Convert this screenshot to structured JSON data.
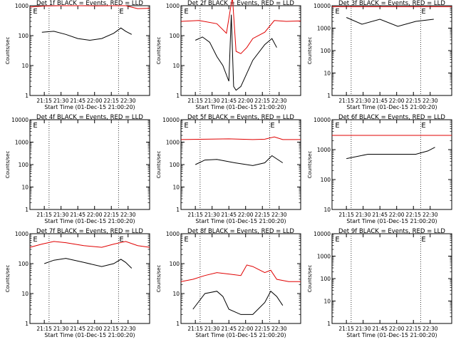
{
  "chart_data": [
    {
      "title": "Det 1f BLACK = Events, RED = LLD",
      "type": "line",
      "log": true,
      "yticks": [
        1,
        10,
        100,
        1000
      ],
      "xlabel": "Start Time (01-Dec-15 21:00:20)",
      "ylabel": "Counts/sec",
      "xticks": [
        "21:15",
        "21:30",
        "21:45",
        "22:00",
        "22:15",
        "22:30"
      ],
      "markers": [
        "E",
        "E"
      ],
      "series": [
        {
          "name": "RED",
          "color": "#e00000",
          "x": [
            0,
            0.12,
            0.25,
            0.4,
            0.55,
            0.7,
            0.8,
            0.9,
            1
          ],
          "y": [
            900,
            980,
            1000,
            1000,
            990,
            1000,
            1000,
            800,
            820
          ]
        },
        {
          "name": "BLACK",
          "color": "#000000",
          "x": [
            0.1,
            0.2,
            0.3,
            0.4,
            0.5,
            0.6,
            0.7,
            0.76,
            0.8,
            0.85
          ],
          "y": [
            130,
            140,
            110,
            80,
            70,
            80,
            120,
            180,
            140,
            110
          ]
        }
      ]
    },
    {
      "title": "Det 2f BLACK = Events, RED = LLD",
      "type": "line",
      "log": true,
      "yticks": [
        1,
        10,
        100,
        1000
      ],
      "xlabel": "Start Time (01-Dec-15 21:00:20)",
      "ylabel": "Counts/sec",
      "xticks": [
        "21:15",
        "21:30",
        "21:45",
        "22:00",
        "22:15",
        "22:30"
      ],
      "markers": [
        "E"
      ],
      "series": [
        {
          "name": "RED",
          "color": "#e00000",
          "x": [
            0,
            0.15,
            0.3,
            0.38,
            0.43,
            0.46,
            0.5,
            0.55,
            0.6,
            0.7,
            0.78,
            0.88,
            1
          ],
          "y": [
            300,
            320,
            250,
            120,
            2000,
            30,
            25,
            40,
            80,
            130,
            320,
            300,
            310
          ]
        },
        {
          "name": "BLACK",
          "color": "#000000",
          "x": [
            0.12,
            0.18,
            0.24,
            0.3,
            0.35,
            0.4,
            0.42,
            0.44,
            0.46,
            0.5,
            0.6,
            0.7,
            0.76,
            0.8
          ],
          "y": [
            70,
            90,
            60,
            20,
            10,
            3,
            500,
            2,
            1.5,
            2,
            15,
            50,
            80,
            40
          ]
        }
      ]
    },
    {
      "title": "Det 3f BLACK = Events, RED = LLD",
      "type": "line",
      "log": true,
      "yticks": [
        1,
        10,
        100,
        1000,
        10000
      ],
      "xlabel": "Start Time (01-Dec-15 21:00:20)",
      "ylabel": "Counts/sec",
      "xticks": [
        "21:15",
        "21:30",
        "21:45",
        "22:00",
        "22:15",
        "22:30"
      ],
      "markers": [
        "E",
        "E"
      ],
      "series": [
        {
          "name": "RED",
          "color": "#e00000",
          "x": [
            0,
            0.5,
            1
          ],
          "y": [
            9000,
            9000,
            9000
          ]
        },
        {
          "name": "BLACK",
          "color": "#000000",
          "x": [
            0.12,
            0.25,
            0.4,
            0.55,
            0.7,
            0.85
          ],
          "y": [
            3000,
            1500,
            2500,
            1200,
            2000,
            2500
          ]
        }
      ]
    },
    {
      "title": "Det 4f BLACK = Events, RED = LLD",
      "type": "line",
      "log": true,
      "yticks": [
        1,
        10,
        100,
        1000,
        10000
      ],
      "xlabel": "Start Time (01-Dec-15 21:00:20)",
      "ylabel": "Counts/sec",
      "xticks": [
        "21:15",
        "21:30",
        "21:45",
        "22:00",
        "22:15",
        "22:30"
      ],
      "markers": [
        "E"
      ],
      "series": []
    },
    {
      "title": "Det 5f BLACK = Events, RED = LLD",
      "type": "line",
      "log": true,
      "yticks": [
        1,
        10,
        100,
        1000,
        10000
      ],
      "xlabel": "Start Time (01-Dec-15 21:00:20)",
      "ylabel": "Counts/sec",
      "xticks": [
        "21:15",
        "21:30",
        "21:45",
        "22:00",
        "22:15",
        "22:30"
      ],
      "markers": [
        "E",
        "E"
      ],
      "series": [
        {
          "name": "RED",
          "color": "#e00000",
          "x": [
            0,
            0.2,
            0.4,
            0.6,
            0.7,
            0.78,
            0.85,
            1
          ],
          "y": [
            1300,
            1350,
            1400,
            1300,
            1350,
            1700,
            1300,
            1300
          ]
        },
        {
          "name": "BLACK",
          "color": "#000000",
          "x": [
            0.12,
            0.2,
            0.3,
            0.45,
            0.6,
            0.7,
            0.76,
            0.8,
            0.85
          ],
          "y": [
            100,
            160,
            170,
            120,
            90,
            120,
            250,
            180,
            120
          ]
        }
      ]
    },
    {
      "title": "Det 6f BLACK = Events, RED = LLD",
      "type": "line",
      "log": true,
      "yticks": [
        10,
        100,
        1000,
        10000
      ],
      "xlabel": "Start Time (01-Dec-15 21:00:20)",
      "ylabel": "Counts/sec",
      "xticks": [
        "21:15",
        "21:30",
        "21:45",
        "22:00",
        "22:15",
        "22:30"
      ],
      "markers": [
        "E",
        "E"
      ],
      "series": [
        {
          "name": "RED",
          "color": "#e00000",
          "x": [
            0,
            0.5,
            1
          ],
          "y": [
            3000,
            3000,
            3000
          ]
        },
        {
          "name": "BLACK",
          "color": "#000000",
          "x": [
            0.12,
            0.3,
            0.5,
            0.7,
            0.8,
            0.86
          ],
          "y": [
            500,
            700,
            700,
            700,
            900,
            1200
          ]
        }
      ]
    },
    {
      "title": "Det 7f BLACK = Events, RED = LLD",
      "type": "line",
      "log": true,
      "yticks": [
        1,
        10,
        100,
        1000
      ],
      "xlabel": "Start Time (01-Dec-15 21:00:20)",
      "ylabel": "Counts/sec",
      "xticks": [
        "21:15",
        "21:30",
        "21:45",
        "22:00",
        "22:15",
        "22:30"
      ],
      "markers": [
        "E",
        "E"
      ],
      "series": [
        {
          "name": "RED",
          "color": "#e00000",
          "x": [
            0,
            0.1,
            0.2,
            0.3,
            0.45,
            0.6,
            0.7,
            0.8,
            0.9,
            1
          ],
          "y": [
            350,
            450,
            550,
            500,
            400,
            350,
            450,
            550,
            400,
            350
          ]
        },
        {
          "name": "BLACK",
          "color": "#000000",
          "x": [
            0.12,
            0.2,
            0.3,
            0.45,
            0.6,
            0.7,
            0.76,
            0.8,
            0.85
          ],
          "y": [
            100,
            130,
            150,
            110,
            80,
            100,
            140,
            110,
            70
          ]
        }
      ]
    },
    {
      "title": "Det 8f BLACK = Events, RED = LLD",
      "type": "line",
      "log": true,
      "yticks": [
        1,
        10,
        100,
        1000
      ],
      "xlabel": "Start Time (01-Dec-15 21:00:20)",
      "ylabel": "Counts/sec",
      "xticks": [
        "21:15",
        "21:30",
        "21:45",
        "22:00",
        "22:15",
        "22:30"
      ],
      "markers": [
        "E"
      ],
      "series": [
        {
          "name": "RED",
          "color": "#e00000",
          "x": [
            0,
            0.1,
            0.2,
            0.3,
            0.4,
            0.5,
            0.55,
            0.6,
            0.7,
            0.75,
            0.8,
            0.9,
            1
          ],
          "y": [
            25,
            30,
            40,
            50,
            45,
            40,
            90,
            80,
            50,
            60,
            30,
            25,
            25
          ]
        },
        {
          "name": "BLACK",
          "color": "#000000",
          "x": [
            0.1,
            0.2,
            0.3,
            0.35,
            0.4,
            0.5,
            0.55,
            0.6,
            0.7,
            0.75,
            0.8,
            0.85
          ],
          "y": [
            3,
            10,
            12,
            8,
            3,
            2,
            2,
            2,
            5,
            12,
            8,
            4
          ]
        }
      ]
    },
    {
      "title": "Det 9f BLACK = Events, RED = LLD",
      "type": "line",
      "log": true,
      "yticks": [
        1,
        10,
        100,
        1000,
        10000
      ],
      "xlabel": "Start Time (01-Dec-15 21:00:20)",
      "ylabel": "Counts/sec",
      "xticks": [
        "21:15",
        "21:30",
        "21:45",
        "22:00",
        "22:15",
        "22:30"
      ],
      "markers": [
        "E",
        "E"
      ],
      "series": []
    }
  ]
}
